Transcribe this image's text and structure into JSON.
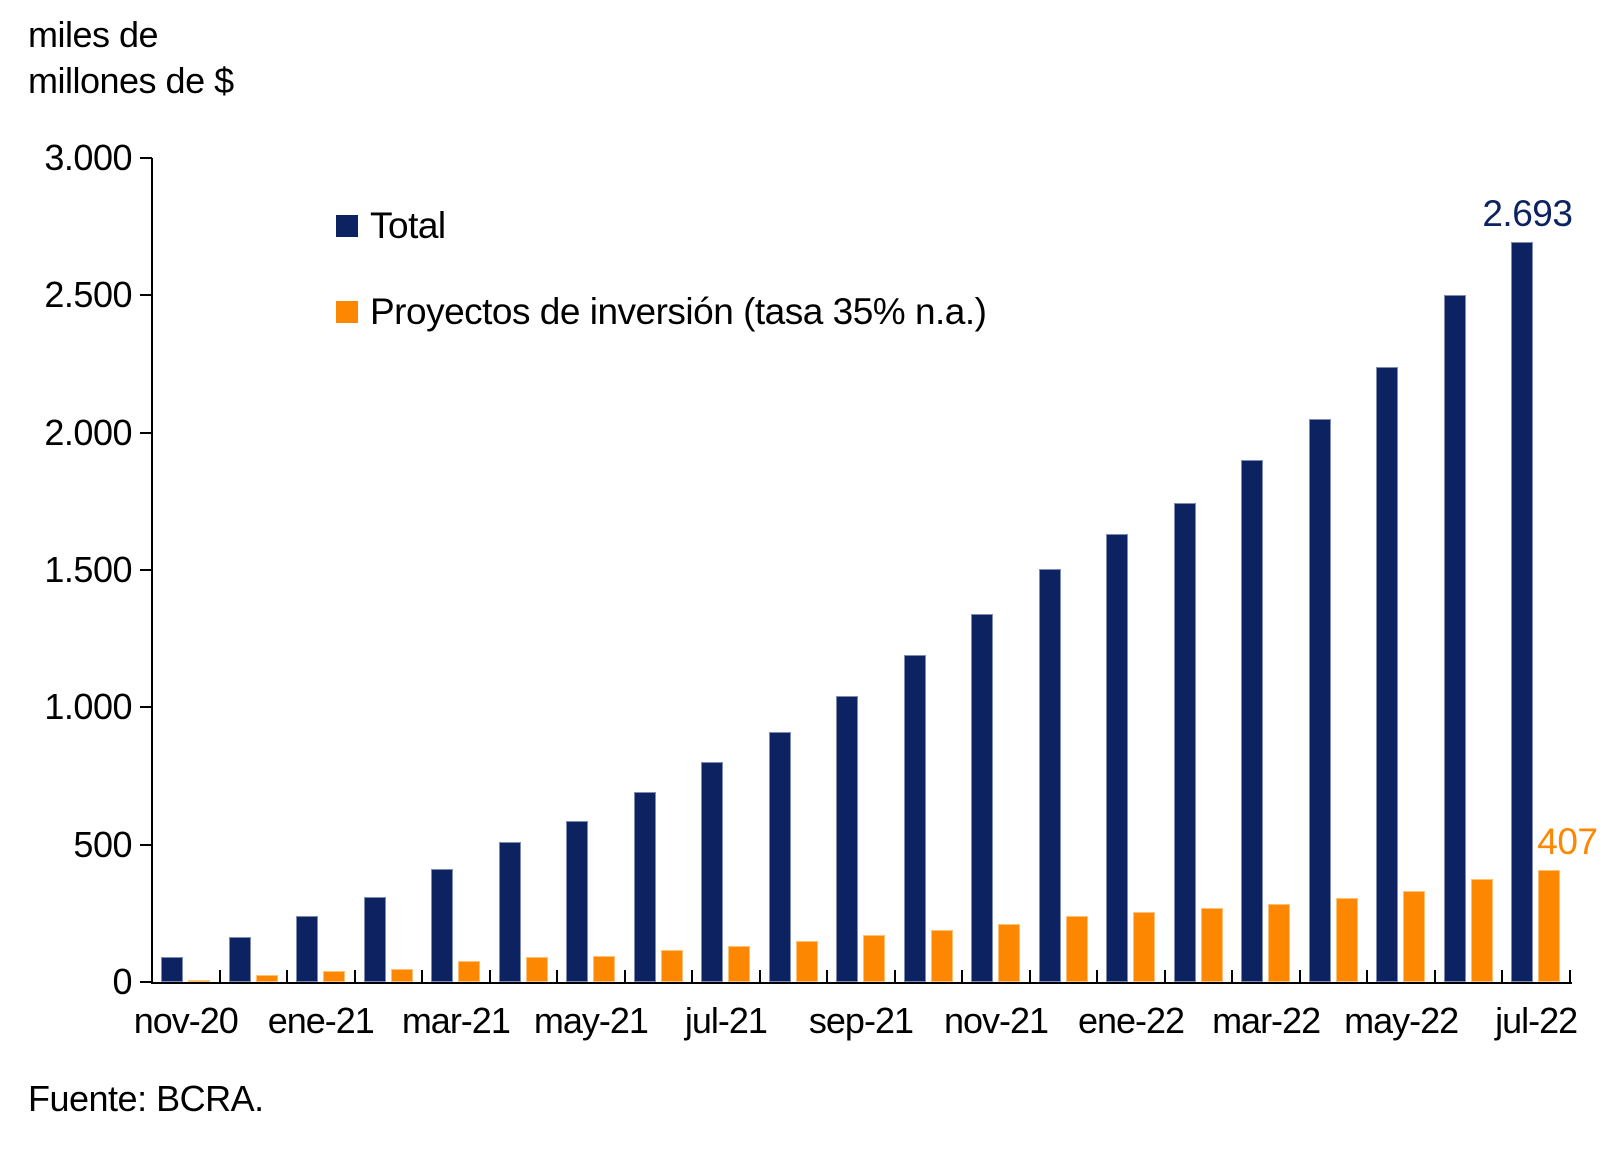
{
  "y_axis_title_line1": "miles de",
  "y_axis_title_line2": "millones de $",
  "source": "Fuente: BCRA.",
  "legend": {
    "total": "Total",
    "proyectos": "Proyectos de inversión (tasa 35% n.a.)"
  },
  "colors": {
    "total": "#0D2260",
    "proyectos": "#FE8702",
    "axis": "#000000",
    "background": "#FFFFFF"
  },
  "chart_data": {
    "type": "bar",
    "title": "",
    "ylabel": "miles de millones de $",
    "xlabel": "",
    "source": "Fuente: BCRA.",
    "grid": false,
    "legend_position": "top-left-inside",
    "ylim": [
      0,
      3000
    ],
    "y_tick_values": [
      0,
      500,
      1000,
      1500,
      2000,
      2500,
      3000
    ],
    "y_tick_labels": [
      "0",
      "500",
      "1.000",
      "1.500",
      "2.000",
      "2.500",
      "3.000"
    ],
    "categories": [
      "nov-20",
      "dic-20",
      "ene-21",
      "feb-21",
      "mar-21",
      "abr-21",
      "may-21",
      "jun-21",
      "jul-21",
      "ago-21",
      "sep-21",
      "oct-21",
      "nov-21",
      "dic-21",
      "ene-22",
      "feb-22",
      "mar-22",
      "abr-22",
      "may-22",
      "jun-22",
      "jul-22"
    ],
    "x_tick_labels": [
      "nov-20",
      "ene-21",
      "mar-21",
      "may-21",
      "jul-21",
      "sep-21",
      "nov-21",
      "ene-22",
      "mar-22",
      "may-22",
      "jul-22"
    ],
    "series": [
      {
        "name": "Total",
        "color": "#0D2260",
        "values": [
          90,
          165,
          240,
          310,
          410,
          510,
          585,
          690,
          800,
          910,
          1040,
          1190,
          1340,
          1505,
          1630,
          1745,
          1900,
          2050,
          2240,
          2500,
          2693
        ]
      },
      {
        "name": "Proyectos de inversión (tasa 35% n.a.)",
        "color": "#FE8702",
        "values": [
          8,
          25,
          40,
          47,
          75,
          90,
          95,
          115,
          130,
          150,
          170,
          190,
          210,
          240,
          255,
          270,
          285,
          305,
          330,
          375,
          407
        ]
      }
    ],
    "data_labels": [
      {
        "text": "2.693",
        "series": "Total",
        "category": "jul-22",
        "color": "#0D2260"
      },
      {
        "text": "407",
        "series": "Proyectos de inversión (tasa 35% n.a.)",
        "category": "jul-22",
        "color": "#FE8702"
      }
    ]
  }
}
